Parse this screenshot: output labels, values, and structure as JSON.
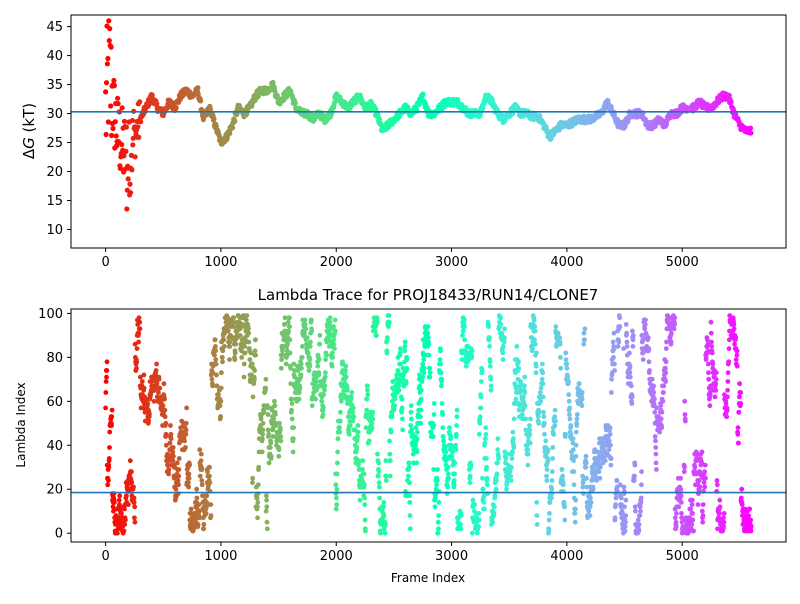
{
  "chart_data": [
    {
      "type": "scatter",
      "title": "",
      "xlabel": "",
      "ylabel": "ΔG (kT)",
      "ylabel_parts": {
        "delta": "Δ",
        "symbol": "G",
        "units": " (kT)"
      },
      "xlim": [
        -300,
        5900
      ],
      "ylim": [
        6.8,
        47
      ],
      "x_ticks": [
        0,
        1000,
        2000,
        3000,
        4000,
        5000
      ],
      "y_ticks": [
        10,
        15,
        20,
        25,
        30,
        35,
        40,
        45
      ],
      "hline": {
        "y": 30.3,
        "color": "#1f77b4"
      },
      "colormap": "rainbow (reversed: red at frame 0, violet at last frame)",
      "n_frames": 5600,
      "series": [
        {
          "points_description": "one point per frame, color encodes frame index",
          "trace_keypoints": [
            [
              0,
              30
            ],
            [
              30,
              38
            ],
            [
              60,
              32
            ],
            [
              100,
              27
            ],
            [
              150,
              24
            ],
            [
              200,
              22
            ],
            [
              250,
              26
            ],
            [
              300,
              29
            ],
            [
              350,
              31
            ],
            [
              400,
              33
            ],
            [
              450,
              31
            ],
            [
              500,
              30
            ],
            [
              550,
              32
            ],
            [
              600,
              31
            ],
            [
              650,
              33
            ],
            [
              700,
              34
            ],
            [
              750,
              33
            ],
            [
              800,
              34
            ],
            [
              850,
              29
            ],
            [
              900,
              31
            ],
            [
              950,
              28
            ],
            [
              1000,
              25
            ],
            [
              1050,
              26
            ],
            [
              1100,
              28
            ],
            [
              1150,
              31
            ],
            [
              1200,
              30
            ],
            [
              1250,
              31
            ],
            [
              1300,
              33
            ],
            [
              1350,
              34
            ],
            [
              1400,
              34
            ],
            [
              1450,
              35
            ],
            [
              1500,
              32
            ],
            [
              1550,
              33
            ],
            [
              1600,
              34
            ],
            [
              1650,
              31
            ],
            [
              1700,
              30
            ],
            [
              1750,
              30
            ],
            [
              1800,
              29
            ],
            [
              1850,
              30
            ],
            [
              1900,
              29
            ],
            [
              1950,
              30
            ],
            [
              2000,
              33
            ],
            [
              2050,
              32
            ],
            [
              2100,
              31
            ],
            [
              2150,
              32
            ],
            [
              2200,
              33
            ],
            [
              2250,
              31
            ],
            [
              2300,
              31.5
            ],
            [
              2350,
              30
            ],
            [
              2400,
              27
            ],
            [
              2450,
              28
            ],
            [
              2500,
              29
            ],
            [
              2550,
              30
            ],
            [
              2600,
              31
            ],
            [
              2650,
              30
            ],
            [
              2700,
              31
            ],
            [
              2750,
              33
            ],
            [
              2800,
              30
            ],
            [
              2850,
              30
            ],
            [
              2900,
              31
            ],
            [
              2950,
              32
            ],
            [
              3000,
              32
            ],
            [
              3050,
              32
            ],
            [
              3100,
              31
            ],
            [
              3150,
              30
            ],
            [
              3200,
              30
            ],
            [
              3250,
              30
            ],
            [
              3300,
              33
            ],
            [
              3350,
              32
            ],
            [
              3400,
              30
            ],
            [
              3450,
              29
            ],
            [
              3500,
              30
            ],
            [
              3550,
              31
            ],
            [
              3600,
              30
            ],
            [
              3650,
              30
            ],
            [
              3700,
              29.5
            ],
            [
              3750,
              29.5
            ],
            [
              3800,
              28
            ],
            [
              3850,
              26
            ],
            [
              3900,
              27
            ],
            [
              3950,
              28
            ],
            [
              4000,
              28
            ],
            [
              4100,
              29
            ],
            [
              4200,
              29
            ],
            [
              4300,
              30
            ],
            [
              4350,
              32
            ],
            [
              4400,
              30
            ],
            [
              4450,
              28
            ],
            [
              4500,
              28
            ],
            [
              4550,
              30
            ],
            [
              4600,
              30
            ],
            [
              4650,
              30
            ],
            [
              4700,
              28
            ],
            [
              4750,
              28
            ],
            [
              4800,
              29
            ],
            [
              4850,
              28
            ],
            [
              4900,
              30
            ],
            [
              4950,
              30
            ],
            [
              5000,
              31
            ],
            [
              5050,
              31
            ],
            [
              5100,
              31
            ],
            [
              5150,
              32
            ],
            [
              5200,
              31
            ],
            [
              5250,
              31
            ],
            [
              5300,
              32
            ],
            [
              5350,
              33
            ],
            [
              5400,
              33
            ],
            [
              5450,
              30
            ],
            [
              5500,
              28
            ],
            [
              5550,
              27
            ],
            [
              5600,
              27
            ]
          ]
        }
      ]
    },
    {
      "type": "scatter",
      "title": "Lambda Trace for PROJ18433/RUN14/CLONE7",
      "xlabel": "Frame Index",
      "ylabel": "Lambda Index",
      "xlim": [
        -300,
        5900
      ],
      "ylim": [
        -4,
        102
      ],
      "x_ticks": [
        0,
        1000,
        2000,
        3000,
        4000,
        5000
      ],
      "y_ticks": [
        0,
        20,
        40,
        60,
        80,
        100
      ],
      "hline": {
        "y": 18.5,
        "color": "#1f77b4"
      },
      "colormap": "rainbow (reversed: red at frame 0, violet at last frame)",
      "n_frames": 5600,
      "lambda_range": [
        0,
        99
      ],
      "series": [
        {
          "points_description": "one lambda index (0-99) per frame, random-walk across the full range, color encodes frame index"
        }
      ]
    }
  ]
}
